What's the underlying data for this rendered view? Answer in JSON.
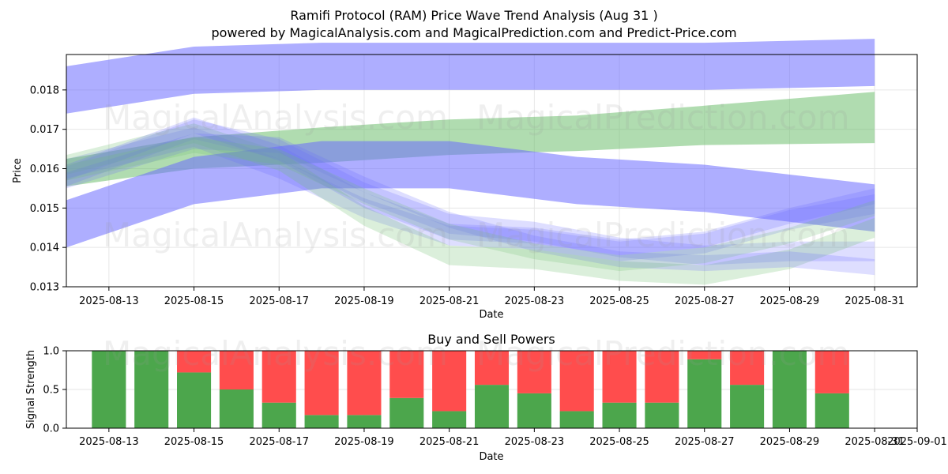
{
  "header": {
    "title": "Ramifi Protocol (RAM) Price Wave Trend Analysis (Aug 31 )",
    "subtitle": "powered by MagicalAnalysis.com and MagicalPrediction.com and Predict-Price.com"
  },
  "watermarks": [
    "MagicalAnalysis.com",
    "MagicalPrediction.com"
  ],
  "colors": {
    "blue": "#6b6bff",
    "green": "#6fbf6f",
    "buy": "#4ca64c",
    "sell": "#ff4d4d",
    "grid": "#e6e6e6"
  },
  "chart_data": [
    {
      "type": "area",
      "title": "",
      "xlabel": "Date",
      "ylabel": "Price",
      "xlim": [
        "2025-08-12",
        "2025-09-01"
      ],
      "ylim": [
        0.013,
        0.0189
      ],
      "grid": true,
      "x_ticks": [
        "2025-08-13",
        "2025-08-15",
        "2025-08-17",
        "2025-08-19",
        "2025-08-21",
        "2025-08-23",
        "2025-08-25",
        "2025-08-27",
        "2025-08-29",
        "2025-08-31"
      ],
      "y_ticks": [
        "0.013",
        "0.014",
        "0.015",
        "0.016",
        "0.017",
        "0.018"
      ],
      "series": [
        {
          "color": "blue",
          "x": [
            "2025-08-12",
            "2025-08-15",
            "2025-08-18",
            "2025-08-21",
            "2025-08-24",
            "2025-08-27",
            "2025-08-31"
          ],
          "center": [
            0.018,
            0.0185,
            0.0186,
            0.0186,
            0.0186,
            0.0186,
            0.0187
          ],
          "width": [
            0.0012,
            0.0012,
            0.0012,
            0.0012,
            0.0012,
            0.0012,
            0.0012
          ],
          "opacity": 0.55
        },
        {
          "color": "green",
          "x": [
            "2025-08-12",
            "2025-08-15",
            "2025-08-18",
            "2025-08-21",
            "2025-08-24",
            "2025-08-27",
            "2025-08-31"
          ],
          "center": [
            0.0159,
            0.0164,
            0.0166,
            0.0168,
            0.0169,
            0.0171,
            0.0173
          ],
          "width": [
            0.0007,
            0.0008,
            0.0009,
            0.0009,
            0.0009,
            0.001,
            0.0013
          ],
          "opacity": 0.55
        },
        {
          "color": "blue",
          "x": [
            "2025-08-12",
            "2025-08-15",
            "2025-08-18",
            "2025-08-21",
            "2025-08-24",
            "2025-08-27",
            "2025-08-31"
          ],
          "center": [
            0.0146,
            0.0157,
            0.0161,
            0.0161,
            0.0157,
            0.0155,
            0.015
          ],
          "width": [
            0.0012,
            0.0012,
            0.0012,
            0.0012,
            0.0012,
            0.0012,
            0.0012
          ],
          "opacity": 0.55
        },
        {
          "color": "blue",
          "x": [
            "2025-08-12",
            "2025-08-15",
            "2025-08-17",
            "2025-08-19",
            "2025-08-21",
            "2025-08-23",
            "2025-08-25",
            "2025-08-27",
            "2025-08-29",
            "2025-08-31"
          ],
          "center": [
            0.0158,
            0.017,
            0.0165,
            0.0154,
            0.0146,
            0.0144,
            0.014,
            0.0138,
            0.0139,
            0.0139
          ],
          "width": [
            0.0005,
            0.0005,
            0.0005,
            0.0005,
            0.0005,
            0.0005,
            0.0005,
            0.0005,
            0.0005,
            0.0005
          ],
          "opacity": 0.22
        },
        {
          "color": "blue",
          "x": [
            "2025-08-12",
            "2025-08-15",
            "2025-08-17",
            "2025-08-19",
            "2025-08-21",
            "2025-08-23",
            "2025-08-25",
            "2025-08-27",
            "2025-08-29",
            "2025-08-31"
          ],
          "center": [
            0.016,
            0.0168,
            0.016,
            0.015,
            0.0143,
            0.0142,
            0.0139,
            0.0141,
            0.0147,
            0.0151
          ],
          "width": [
            0.0005,
            0.0005,
            0.0005,
            0.0005,
            0.0005,
            0.0005,
            0.0005,
            0.0005,
            0.0005,
            0.0005
          ],
          "opacity": 0.22
        },
        {
          "color": "green",
          "x": [
            "2025-08-12",
            "2025-08-15",
            "2025-08-17",
            "2025-08-19",
            "2025-08-21",
            "2025-08-23",
            "2025-08-25",
            "2025-08-27",
            "2025-08-29",
            "2025-08-31"
          ],
          "center": [
            0.0161,
            0.0169,
            0.0162,
            0.0148,
            0.0138,
            0.0137,
            0.0134,
            0.0133,
            0.0137,
            0.0145
          ],
          "width": [
            0.0005,
            0.0005,
            0.0005,
            0.0005,
            0.0005,
            0.0005,
            0.0005,
            0.0005,
            0.0005,
            0.0005
          ],
          "opacity": 0.25
        },
        {
          "color": "blue",
          "x": [
            "2025-08-12",
            "2025-08-15",
            "2025-08-17",
            "2025-08-19",
            "2025-08-21",
            "2025-08-23",
            "2025-08-25",
            "2025-08-27",
            "2025-08-29",
            "2025-08-31"
          ],
          "center": [
            0.0159,
            0.0171,
            0.0164,
            0.0152,
            0.0144,
            0.0143,
            0.014,
            0.0142,
            0.0148,
            0.0153
          ],
          "width": [
            0.0004,
            0.0004,
            0.0004,
            0.0004,
            0.0004,
            0.0004,
            0.0004,
            0.0004,
            0.0004,
            0.0004
          ],
          "opacity": 0.22
        },
        {
          "color": "blue",
          "x": [
            "2025-08-12",
            "2025-08-15",
            "2025-08-17",
            "2025-08-19",
            "2025-08-21",
            "2025-08-23",
            "2025-08-25",
            "2025-08-27",
            "2025-08-29",
            "2025-08-31"
          ],
          "center": [
            0.0157,
            0.0167,
            0.0166,
            0.0156,
            0.0147,
            0.0141,
            0.0137,
            0.0136,
            0.0137,
            0.0135
          ],
          "width": [
            0.0004,
            0.0004,
            0.0004,
            0.0004,
            0.0004,
            0.0004,
            0.0004,
            0.0004,
            0.0004,
            0.0004
          ],
          "opacity": 0.22
        },
        {
          "color": "green",
          "x": [
            "2025-08-12",
            "2025-08-15",
            "2025-08-17",
            "2025-08-19",
            "2025-08-21",
            "2025-08-23",
            "2025-08-25",
            "2025-08-27",
            "2025-08-29",
            "2025-08-31"
          ],
          "center": [
            0.0159,
            0.0166,
            0.0163,
            0.0153,
            0.0144,
            0.0139,
            0.0136,
            0.0138,
            0.0143,
            0.015
          ],
          "width": [
            0.0004,
            0.0004,
            0.0004,
            0.0004,
            0.0004,
            0.0004,
            0.0004,
            0.0004,
            0.0004,
            0.0004
          ],
          "opacity": 0.22
        }
      ]
    },
    {
      "type": "bar",
      "title": "Buy and Sell Powers",
      "xlabel": "Date",
      "ylabel": "Signal Strength",
      "xlim": [
        "2025-08-12",
        "2025-09-01"
      ],
      "ylim": [
        0,
        1
      ],
      "grid": true,
      "x_ticks": [
        "2025-08-13",
        "2025-08-15",
        "2025-08-17",
        "2025-08-19",
        "2025-08-21",
        "2025-08-23",
        "2025-08-25",
        "2025-08-27",
        "2025-08-29",
        "2025-08-31",
        "2025-09-01"
      ],
      "y_ticks": [
        "0.0",
        "0.5",
        "1.0"
      ],
      "categories": [
        "2025-08-13",
        "2025-08-14",
        "2025-08-15",
        "2025-08-16",
        "2025-08-17",
        "2025-08-18",
        "2025-08-19",
        "2025-08-20",
        "2025-08-21",
        "2025-08-22",
        "2025-08-23",
        "2025-08-24",
        "2025-08-25",
        "2025-08-26",
        "2025-08-27",
        "2025-08-28",
        "2025-08-29",
        "2025-08-30"
      ],
      "series": [
        {
          "name": "Buy",
          "color": "buy",
          "values": [
            1.0,
            1.0,
            0.72,
            0.5,
            0.33,
            0.17,
            0.17,
            0.39,
            0.22,
            0.56,
            0.45,
            0.22,
            0.33,
            0.33,
            0.89,
            0.56,
            1.0,
            0.45
          ]
        },
        {
          "name": "Sell",
          "color": "sell",
          "values": [
            0.0,
            0.0,
            0.28,
            0.5,
            0.67,
            0.83,
            0.83,
            0.61,
            0.78,
            0.44,
            0.55,
            0.78,
            0.67,
            0.67,
            0.11,
            0.44,
            0.0,
            0.55
          ]
        }
      ]
    }
  ]
}
